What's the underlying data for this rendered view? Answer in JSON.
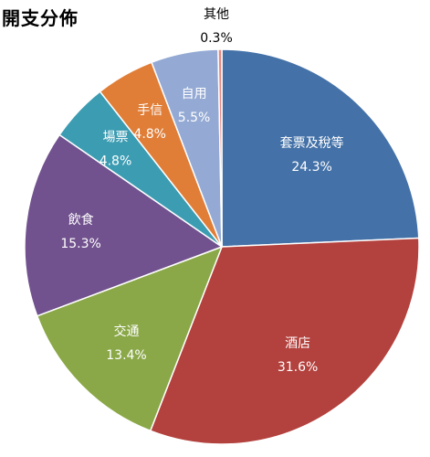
{
  "chart_data": {
    "type": "pie",
    "title": "開支分佈",
    "slices": [
      {
        "label": "套票及稅等",
        "value": 24.3,
        "value_label": "24.3%",
        "color": "#4472A8",
        "text_color": "#ffffff"
      },
      {
        "label": "酒店",
        "value": 31.6,
        "value_label": "31.6%",
        "color": "#B3413D",
        "text_color": "#ffffff"
      },
      {
        "label": "交通",
        "value": 13.4,
        "value_label": "13.4%",
        "color": "#8AA848",
        "text_color": "#ffffff"
      },
      {
        "label": "飲食",
        "value": 15.3,
        "value_label": "15.3%",
        "color": "#71528E",
        "text_color": "#ffffff"
      },
      {
        "label": "場票",
        "value": 4.8,
        "value_label": "4.8%",
        "color": "#3C9CB2",
        "text_color": "#ffffff"
      },
      {
        "label": "手信",
        "value": 4.8,
        "value_label": "4.8%",
        "color": "#E07E38",
        "text_color": "#ffffff"
      },
      {
        "label": "自用",
        "value": 5.5,
        "value_label": "5.5%",
        "color": "#94AAD4",
        "text_color": "#ffffff"
      },
      {
        "label": "其他",
        "value": 0.3,
        "value_label": "0.3%",
        "color": "#E8877F",
        "text_color": "#000000"
      }
    ],
    "start_angle_deg": 0,
    "direction": "clockwise",
    "legend": "none"
  }
}
